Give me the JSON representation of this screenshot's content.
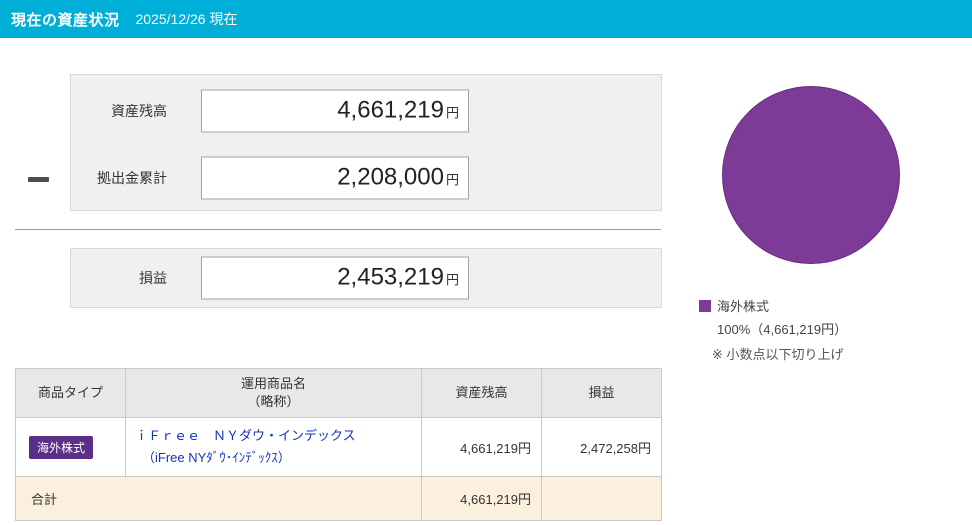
{
  "header": {
    "title": "現在の資産状況",
    "date": "2025/12/26 現在"
  },
  "summary": {
    "rows": [
      {
        "label": "資産残高",
        "value": "4,661,219",
        "unit": "円"
      },
      {
        "label": "拠出金累計",
        "value": "2,208,000",
        "unit": "円"
      }
    ],
    "profit": {
      "label": "損益",
      "value": "2,453,219",
      "unit": "円"
    }
  },
  "pie_legend": {
    "label": "海外株式",
    "detail": "100%（4,661,219円）",
    "note": "※ 小数点以下切り上げ"
  },
  "chart_data": {
    "type": "pie",
    "labels": [
      "海外株式"
    ],
    "values": [
      100
    ],
    "amounts": [
      "4,661,219円"
    ],
    "colors": [
      "#7d3a96"
    ],
    "note": "※ 小数点以下切り上げ"
  },
  "table": {
    "headers": {
      "type": "商品タイプ",
      "name_line1": "運用商品名",
      "name_line2": "（略称）",
      "balance": "資産残高",
      "profit": "損益"
    },
    "rows": [
      {
        "badge": "海外株式",
        "name_line1": "ｉＦｒｅｅ　ＮＹダウ・インデックス",
        "name_line2": "（iFree NYﾀﾞｳ･ｲﾝﾃﾞｯｸｽ）",
        "balance": "4,661,219円",
        "profit": "2,472,258円"
      }
    ],
    "footer": {
      "label": "合計",
      "balance": "4,661,219円"
    }
  },
  "colors": {
    "header_bg": "#00afd8",
    "pie": "#7d3a96",
    "badge": "#5b2e88",
    "link_text": "#1334c0",
    "total_row_bg": "#fbf0de"
  }
}
